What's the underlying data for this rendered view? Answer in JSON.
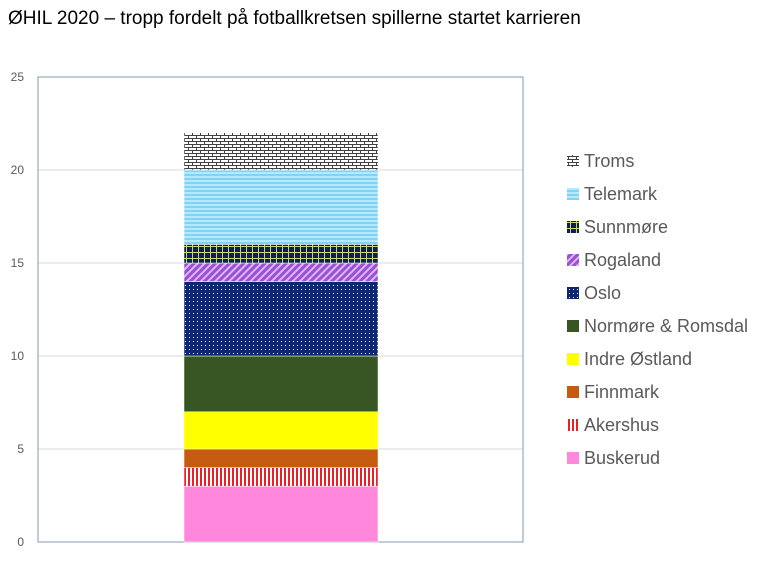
{
  "chart_data": {
    "type": "bar",
    "stacked": true,
    "title": "ØHIL 2020 – tropp fordelt på fotballkretsen spillerne startet karrieren",
    "xlabel": "",
    "ylabel": "",
    "ylim": [
      0,
      25
    ],
    "yticks": [
      0,
      5,
      10,
      15,
      20,
      25
    ],
    "grid": true,
    "legend_position": "right",
    "categories": [
      ""
    ],
    "series": [
      {
        "name": "Buskerud",
        "values": [
          3
        ],
        "color": "#ff88dd",
        "pattern": "solid"
      },
      {
        "name": "Akershus",
        "values": [
          1
        ],
        "color": "#e8202a",
        "pattern": "vertical-stripes"
      },
      {
        "name": "Finnmark",
        "values": [
          1
        ],
        "color": "#c55a11",
        "pattern": "solid"
      },
      {
        "name": "Indre Østland",
        "values": [
          2
        ],
        "color": "#ffff00",
        "pattern": "solid"
      },
      {
        "name": "Normøre & Romsdal",
        "values": [
          3
        ],
        "color": "#375623",
        "pattern": "solid"
      },
      {
        "name": "Oslo",
        "values": [
          4
        ],
        "color": "#0d2870",
        "pattern": "dots"
      },
      {
        "name": "Rogaland",
        "values": [
          1
        ],
        "color": "#9b4fd6",
        "pattern": "diagonal-stripes"
      },
      {
        "name": "Sunnmøre",
        "values": [
          1
        ],
        "color": "#0d2050",
        "pattern": "grid"
      },
      {
        "name": "Telemark",
        "values": [
          4
        ],
        "color": "#7fd3f5",
        "pattern": "horizontal-stripes"
      },
      {
        "name": "Troms",
        "values": [
          2
        ],
        "color": "#404040",
        "pattern": "brick"
      }
    ]
  }
}
